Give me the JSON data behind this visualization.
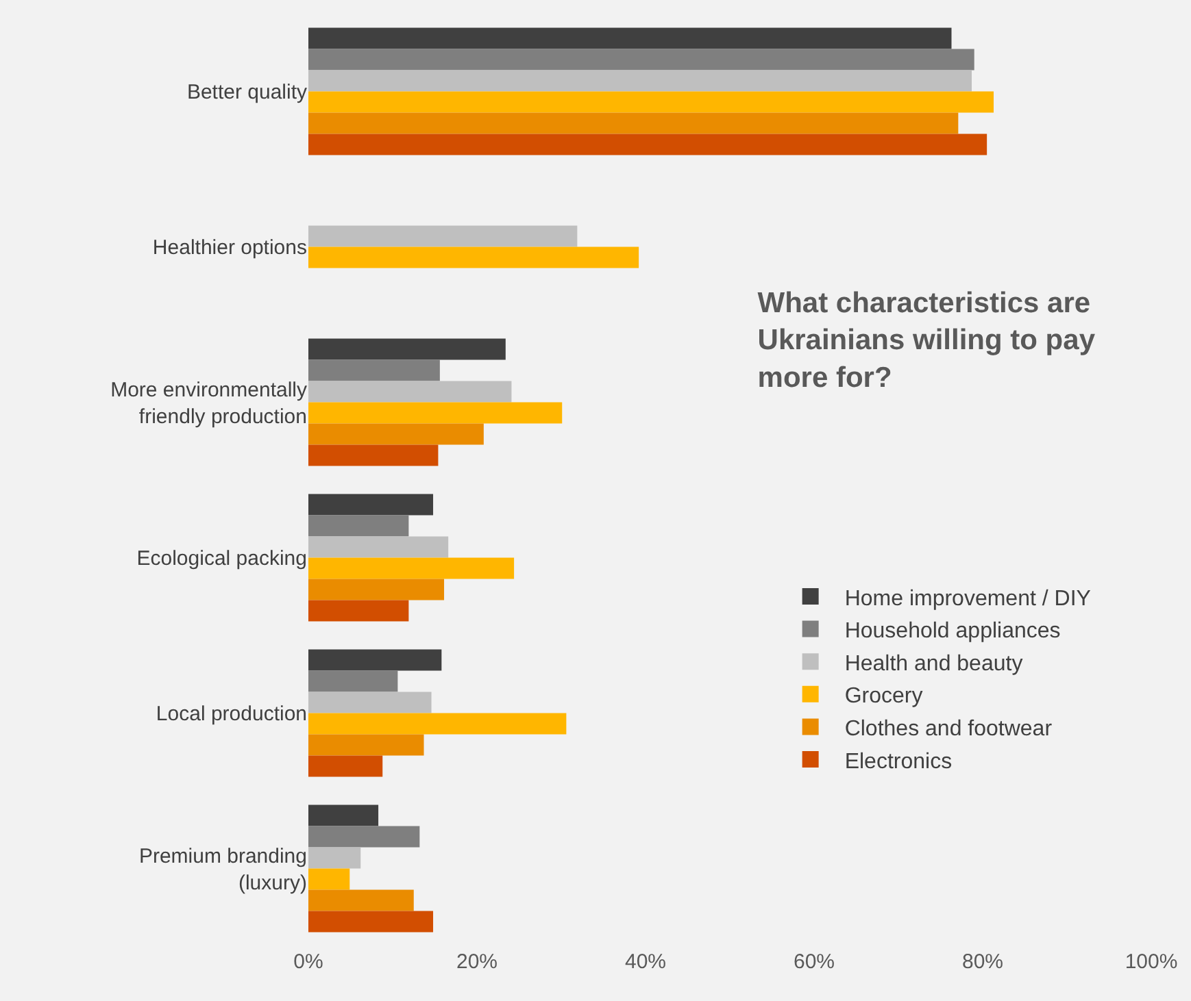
{
  "chart_data": {
    "type": "bar",
    "orientation": "horizontal",
    "title": "What characteristics are\nUkrainians willing to pay\nmore for?",
    "categories": [
      "Better quality",
      "Healthier options",
      "More environmentally\nfriendly production",
      "Ecological packing",
      "Local production",
      "Premium branding\n(luxury)"
    ],
    "series": [
      {
        "name": "Home improvement / DIY",
        "color": "#404040",
        "values": [
          76.3,
          null,
          23.4,
          14.8,
          15.8,
          8.3
        ]
      },
      {
        "name": "Household appliances",
        "color": "#7f7f7f",
        "values": [
          79,
          null,
          15.6,
          11.9,
          10.6,
          13.2
        ]
      },
      {
        "name": "Health and beauty",
        "color": "#bfbfbf",
        "values": [
          78.7,
          31.9,
          24.1,
          16.6,
          14.6,
          6.2
        ]
      },
      {
        "name": "Grocery",
        "color": "#ffb600",
        "values": [
          81.3,
          39.2,
          30.1,
          24.4,
          30.6,
          4.9
        ]
      },
      {
        "name": "Clothes and footwear",
        "color": "#ea8c00",
        "values": [
          77.1,
          null,
          20.8,
          16.1,
          13.7,
          12.5
        ]
      },
      {
        "name": "Electronics",
        "color": "#d24e01",
        "values": [
          80.5,
          null,
          15.4,
          11.9,
          8.8,
          14.8
        ]
      }
    ],
    "xlim": [
      0,
      100
    ],
    "xticks": [
      {
        "value": 0,
        "label": "0%"
      },
      {
        "value": 20,
        "label": "20%"
      },
      {
        "value": 40,
        "label": "40%"
      },
      {
        "value": 60,
        "label": "60%"
      },
      {
        "value": 80,
        "label": "80%"
      },
      {
        "value": 100,
        "label": "100%"
      }
    ],
    "grid": false,
    "legend": "right"
  }
}
